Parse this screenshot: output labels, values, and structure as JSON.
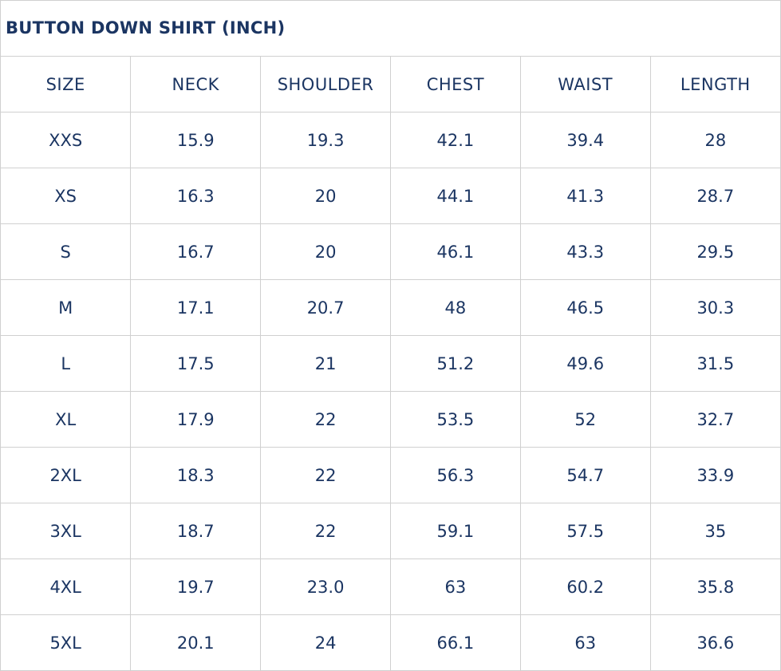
{
  "title": "BUTTON DOWN SHIRT (INCH)",
  "colors": {
    "text": "#1b3562",
    "border": "#d0d0d0"
  },
  "headers": [
    "SIZE",
    "NECK",
    "SHOULDER",
    "CHEST",
    "WAIST",
    "LENGTH"
  ],
  "rows": [
    [
      "XXS",
      "15.9",
      "19.3",
      "42.1",
      "39.4",
      "28"
    ],
    [
      "XS",
      "16.3",
      "20",
      "44.1",
      "41.3",
      "28.7"
    ],
    [
      "S",
      "16.7",
      "20",
      "46.1",
      "43.3",
      "29.5"
    ],
    [
      "M",
      "17.1",
      "20.7",
      "48",
      "46.5",
      "30.3"
    ],
    [
      "L",
      "17.5",
      "21",
      "51.2",
      "49.6",
      "31.5"
    ],
    [
      "XL",
      "17.9",
      "22",
      "53.5",
      "52",
      "32.7"
    ],
    [
      "2XL",
      "18.3",
      "22",
      "56.3",
      "54.7",
      "33.9"
    ],
    [
      "3XL",
      "18.7",
      "22",
      "59.1",
      "57.5",
      "35"
    ],
    [
      "4XL",
      "19.7",
      "23.0",
      "63",
      "60.2",
      "35.8"
    ],
    [
      "5XL",
      "20.1",
      "24",
      "66.1",
      "63",
      "36.6"
    ]
  ]
}
